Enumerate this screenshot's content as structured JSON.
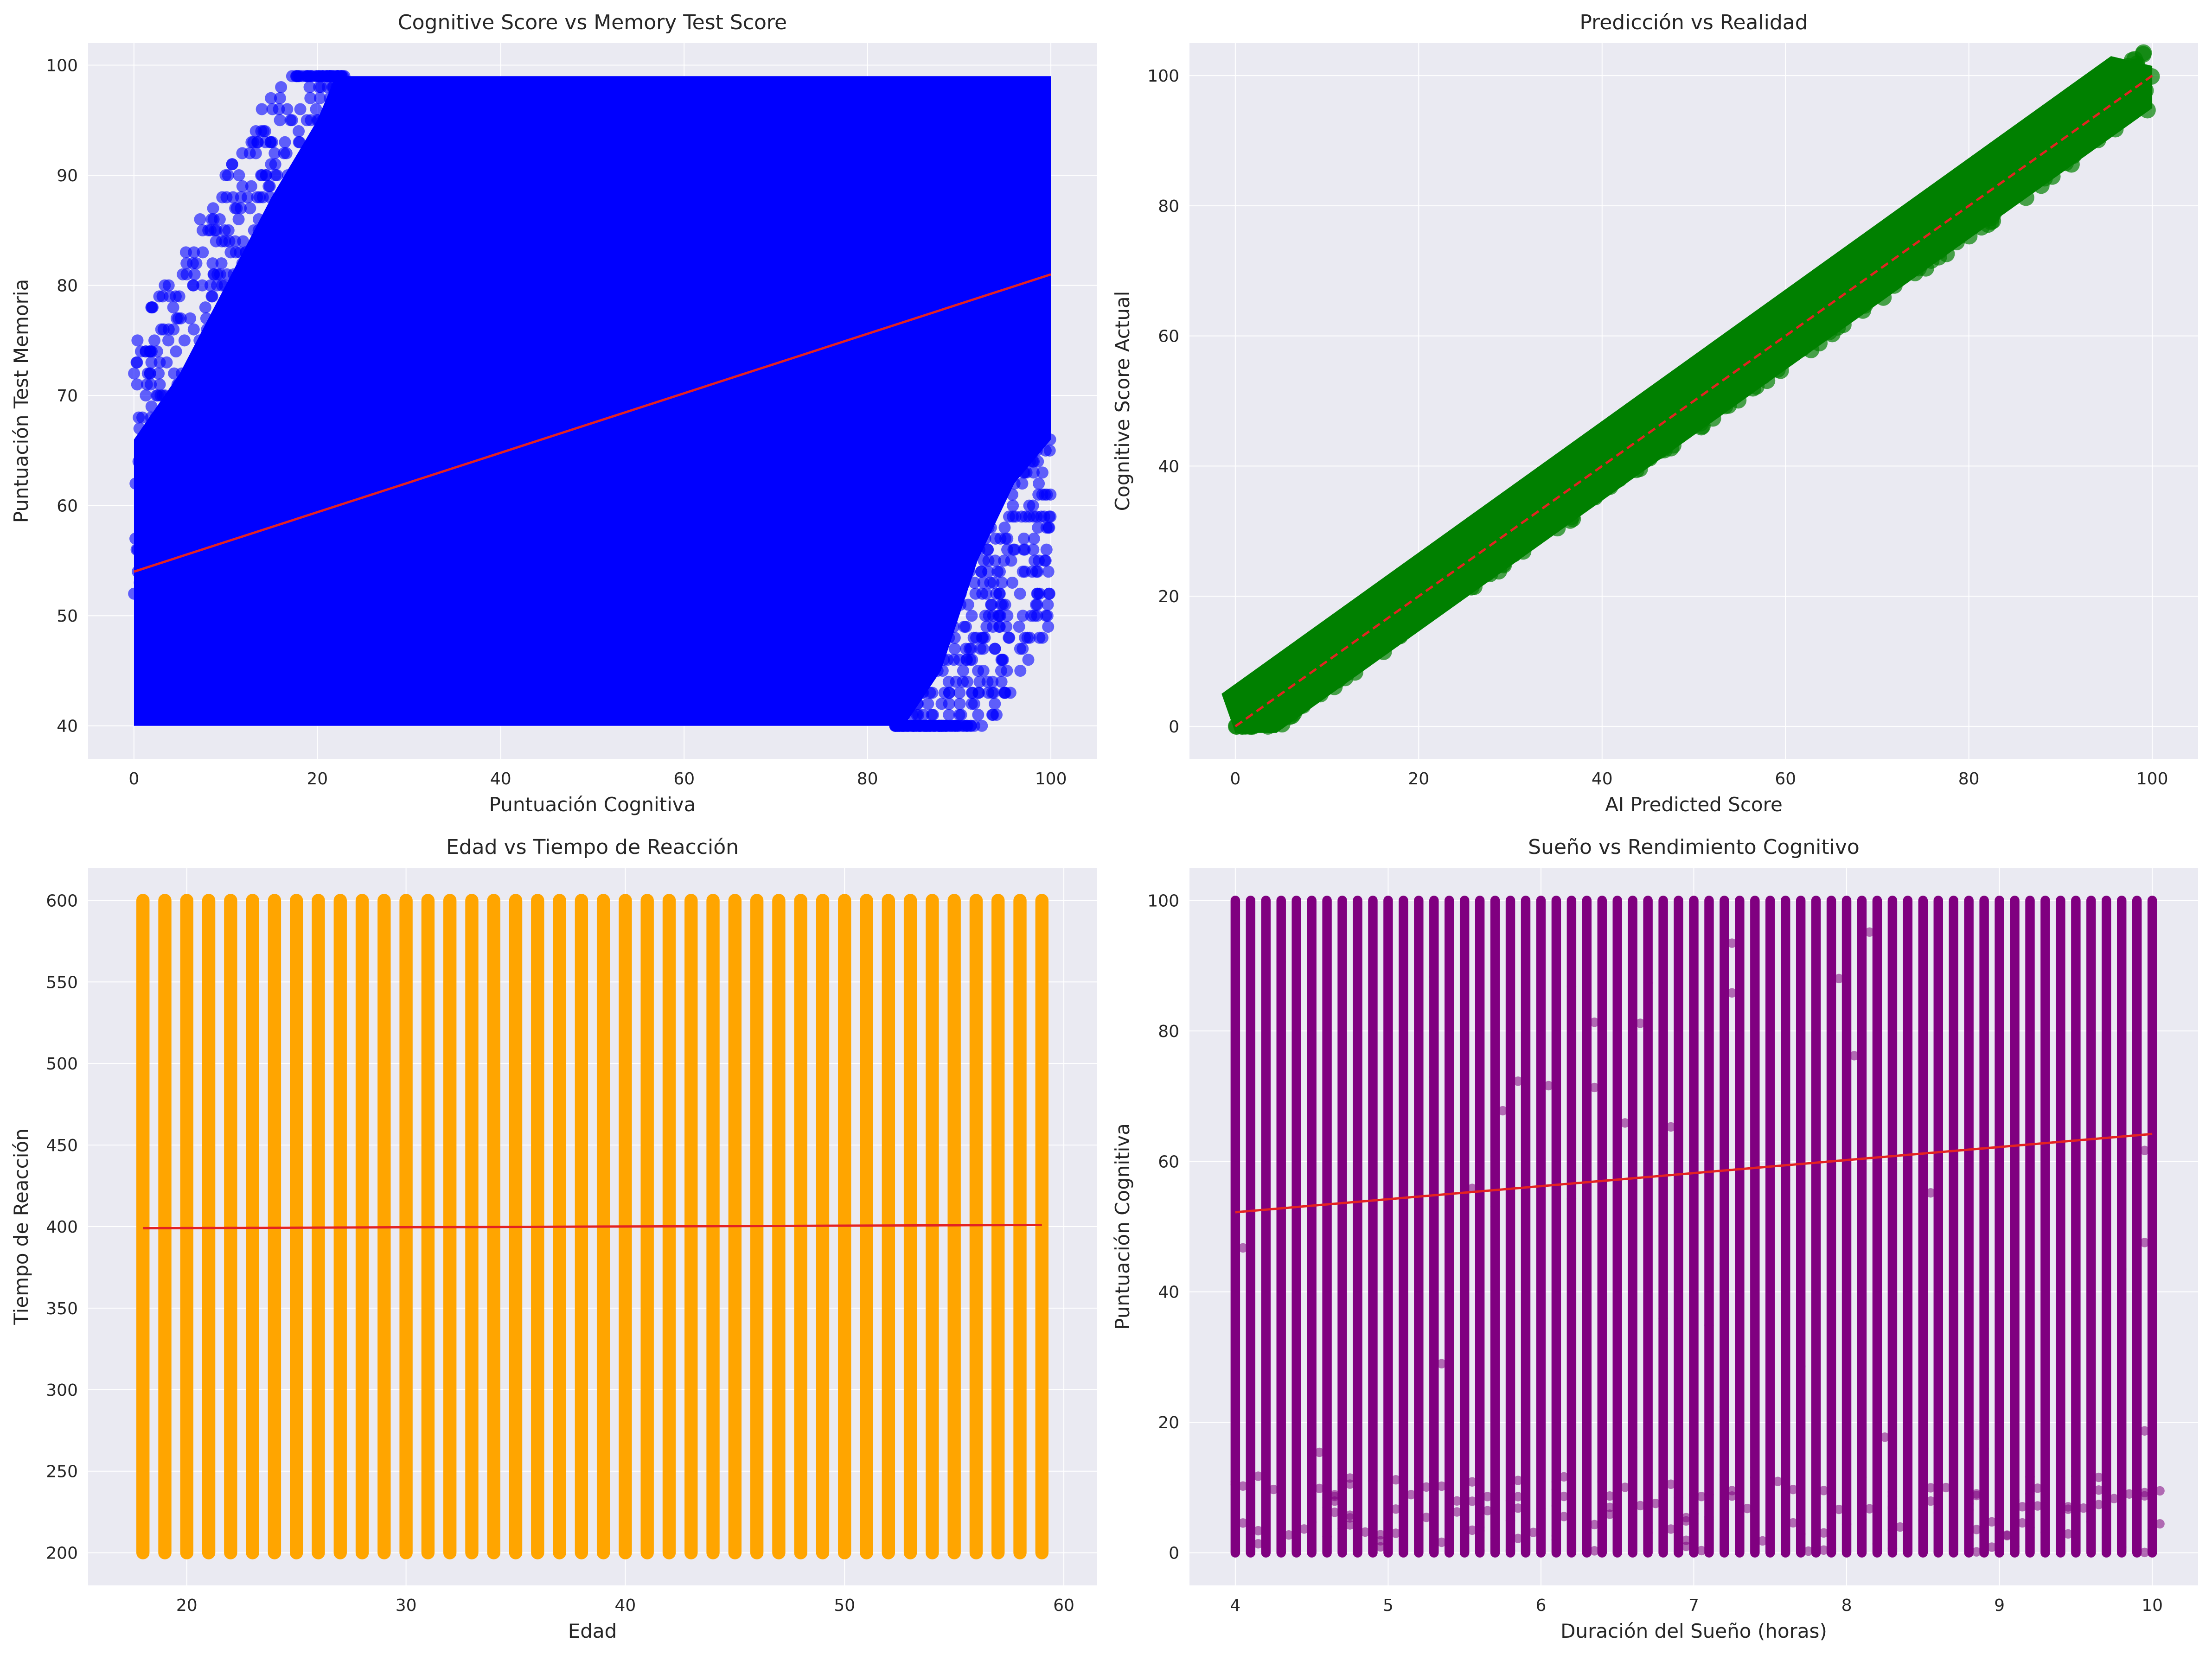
{
  "chart_data": [
    {
      "type": "scatter",
      "title": "Cognitive Score vs Memory Test Score",
      "xlabel": "Puntuación Cognitiva",
      "ylabel": "Puntuación Test Memoria",
      "xlim": [
        -5,
        105
      ],
      "ylim": [
        37,
        102
      ],
      "xticks": [
        0,
        20,
        40,
        60,
        80,
        100
      ],
      "yticks": [
        40,
        50,
        60,
        70,
        80,
        90,
        100
      ],
      "grid": true,
      "point_color": "#0000ff",
      "trend_color": "#e32222",
      "density_region": {
        "x": [
          0,
          100
        ],
        "y_min": 40,
        "y_max": 99,
        "upper_left_boundary": [
          [
            0,
            66
          ],
          [
            5,
            72
          ],
          [
            10,
            80
          ],
          [
            15,
            88
          ],
          [
            20,
            95
          ],
          [
            22,
            99
          ]
        ],
        "lower_right_boundary": [
          [
            84,
            40
          ],
          [
            88,
            45
          ],
          [
            92,
            55
          ],
          [
            96,
            62
          ],
          [
            100,
            66
          ]
        ]
      },
      "trend_line": {
        "x": [
          0,
          100
        ],
        "y": [
          54,
          81
        ]
      }
    },
    {
      "type": "scatter",
      "title": "Predicción vs Realidad",
      "xlabel": "AI Predicted Score",
      "ylabel": "Cognitive Score Actual",
      "xlim": [
        -5,
        105
      ],
      "ylim": [
        -5,
        105
      ],
      "xticks": [
        0,
        20,
        40,
        60,
        80,
        100
      ],
      "yticks": [
        0,
        20,
        40,
        60,
        80,
        100
      ],
      "grid": true,
      "point_color": "#008000",
      "trend_color": "#e32222",
      "band": {
        "x": [
          0,
          100
        ],
        "half_width": 5
      },
      "trend_line": {
        "x": [
          0,
          100
        ],
        "y": [
          0,
          100
        ],
        "style": "dashed"
      }
    },
    {
      "type": "scatter",
      "title": "Edad vs Tiempo de Reacción",
      "xlabel": "Edad",
      "ylabel": "Tiempo de Reacción",
      "xlim": [
        15.5,
        61.5
      ],
      "ylim": [
        180,
        620
      ],
      "xticks": [
        20,
        30,
        40,
        50,
        60
      ],
      "yticks": [
        200,
        250,
        300,
        350,
        400,
        450,
        500,
        550,
        600
      ],
      "grid": true,
      "point_color": "#ffa500",
      "trend_color": "#e32222",
      "columns": {
        "x_values": [
          18,
          19,
          20,
          21,
          22,
          23,
          24,
          25,
          26,
          27,
          28,
          29,
          30,
          31,
          32,
          33,
          34,
          35,
          36,
          37,
          38,
          39,
          40,
          41,
          42,
          43,
          44,
          45,
          46,
          47,
          48,
          49,
          50,
          51,
          52,
          53,
          54,
          55,
          56,
          57,
          58,
          59
        ],
        "y_min": 200,
        "y_max": 600
      },
      "trend_line": {
        "x": [
          18,
          59
        ],
        "y": [
          399,
          401
        ]
      }
    },
    {
      "type": "scatter",
      "title": "Sueño vs Rendimiento Cognitivo",
      "xlabel": "Duración del Sueño (horas)",
      "ylabel": "Puntuación Cognitiva",
      "xlim": [
        3.7,
        10.3
      ],
      "ylim": [
        -5,
        105
      ],
      "xticks": [
        4,
        5,
        6,
        7,
        8,
        9,
        10
      ],
      "yticks": [
        0,
        20,
        40,
        60,
        80,
        100
      ],
      "grid": true,
      "point_color": "#800080",
      "trend_color": "#e32222",
      "columns": {
        "x_start": 4,
        "x_end": 10,
        "x_step": 0.1,
        "y_min": 0,
        "y_max": 100
      },
      "trend_line": {
        "x": [
          4,
          10
        ],
        "y": [
          52.2,
          64.2
        ]
      }
    }
  ]
}
